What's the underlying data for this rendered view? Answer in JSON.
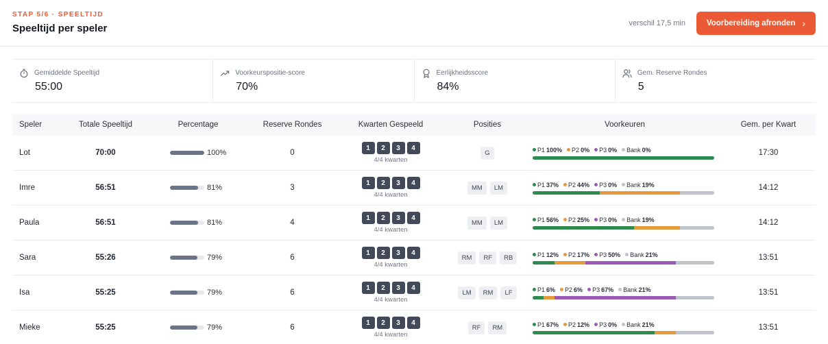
{
  "header": {
    "step": "STAP 5/6 · SPEELTIJD",
    "title": "Speeltijd per speler",
    "diff": "verschil 17,5 min",
    "cta_label": "Voorbereiding afronden"
  },
  "stats": [
    {
      "icon": "stopwatch-icon",
      "label": "Gemiddelde Speeltijd",
      "value": "55:00"
    },
    {
      "icon": "trending-up-icon",
      "label": "Voorkeurspositie-score",
      "value": "70%"
    },
    {
      "icon": "award-icon",
      "label": "Eerlijkheidsscore",
      "value": "84%"
    },
    {
      "icon": "users-icon",
      "label": "Gem. Reserve Rondes",
      "value": "5"
    }
  ],
  "table": {
    "columns": [
      "Speler",
      "Totale Speeltijd",
      "Percentage",
      "Reserve Rondes",
      "Kwarten Gespeeld",
      "Posities",
      "Voorkeuren",
      "Gem. per Kwart"
    ],
    "quarter_labels": [
      "1",
      "2",
      "3",
      "4"
    ],
    "colors": {
      "P1": "#2e8b4e",
      "P2": "#e69a3c",
      "P3": "#9b59b6",
      "Bank": "#bfc3cb"
    },
    "rows": [
      {
        "name": "Lot",
        "total": "70:00",
        "pct": 100,
        "pct_label": "100%",
        "reserve": "0",
        "quarters": "4/4 kwarten",
        "positions": [
          "G"
        ],
        "prefs": [
          {
            "k": "P1",
            "v": 100,
            "label": "100%"
          },
          {
            "k": "P2",
            "v": 0,
            "label": "0%"
          },
          {
            "k": "P3",
            "v": 0,
            "label": "0%"
          },
          {
            "k": "Bank",
            "v": 0,
            "label": "0%"
          }
        ],
        "avg": "17:30"
      },
      {
        "name": "Imre",
        "total": "56:51",
        "pct": 81,
        "pct_label": "81%",
        "reserve": "3",
        "quarters": "4/4 kwarten",
        "positions": [
          "MM",
          "LM"
        ],
        "prefs": [
          {
            "k": "P1",
            "v": 37,
            "label": "37%"
          },
          {
            "k": "P2",
            "v": 44,
            "label": "44%"
          },
          {
            "k": "P3",
            "v": 0,
            "label": "0%"
          },
          {
            "k": "Bank",
            "v": 19,
            "label": "19%"
          }
        ],
        "avg": "14:12"
      },
      {
        "name": "Paula",
        "total": "56:51",
        "pct": 81,
        "pct_label": "81%",
        "reserve": "4",
        "quarters": "4/4 kwarten",
        "positions": [
          "MM",
          "LM"
        ],
        "prefs": [
          {
            "k": "P1",
            "v": 56,
            "label": "56%"
          },
          {
            "k": "P2",
            "v": 25,
            "label": "25%"
          },
          {
            "k": "P3",
            "v": 0,
            "label": "0%"
          },
          {
            "k": "Bank",
            "v": 19,
            "label": "19%"
          }
        ],
        "avg": "14:12"
      },
      {
        "name": "Sara",
        "total": "55:26",
        "pct": 79,
        "pct_label": "79%",
        "reserve": "6",
        "quarters": "4/4 kwarten",
        "positions": [
          "RM",
          "RF",
          "RB"
        ],
        "prefs": [
          {
            "k": "P1",
            "v": 12,
            "label": "12%"
          },
          {
            "k": "P2",
            "v": 17,
            "label": "17%"
          },
          {
            "k": "P3",
            "v": 50,
            "label": "50%"
          },
          {
            "k": "Bank",
            "v": 21,
            "label": "21%"
          }
        ],
        "avg": "13:51"
      },
      {
        "name": "Isa",
        "total": "55:25",
        "pct": 79,
        "pct_label": "79%",
        "reserve": "6",
        "quarters": "4/4 kwarten",
        "positions": [
          "LM",
          "RM",
          "LF"
        ],
        "prefs": [
          {
            "k": "P1",
            "v": 6,
            "label": "6%"
          },
          {
            "k": "P2",
            "v": 6,
            "label": "6%"
          },
          {
            "k": "P3",
            "v": 67,
            "label": "67%"
          },
          {
            "k": "Bank",
            "v": 21,
            "label": "21%"
          }
        ],
        "avg": "13:51"
      },
      {
        "name": "Mieke",
        "total": "55:25",
        "pct": 79,
        "pct_label": "79%",
        "reserve": "6",
        "quarters": "4/4 kwarten",
        "positions": [
          "RF",
          "RM"
        ],
        "prefs": [
          {
            "k": "P1",
            "v": 67,
            "label": "67%"
          },
          {
            "k": "P2",
            "v": 12,
            "label": "12%"
          },
          {
            "k": "P3",
            "v": 0,
            "label": "0%"
          },
          {
            "k": "Bank",
            "v": 21,
            "label": "21%"
          }
        ],
        "avg": "13:51"
      }
    ]
  }
}
